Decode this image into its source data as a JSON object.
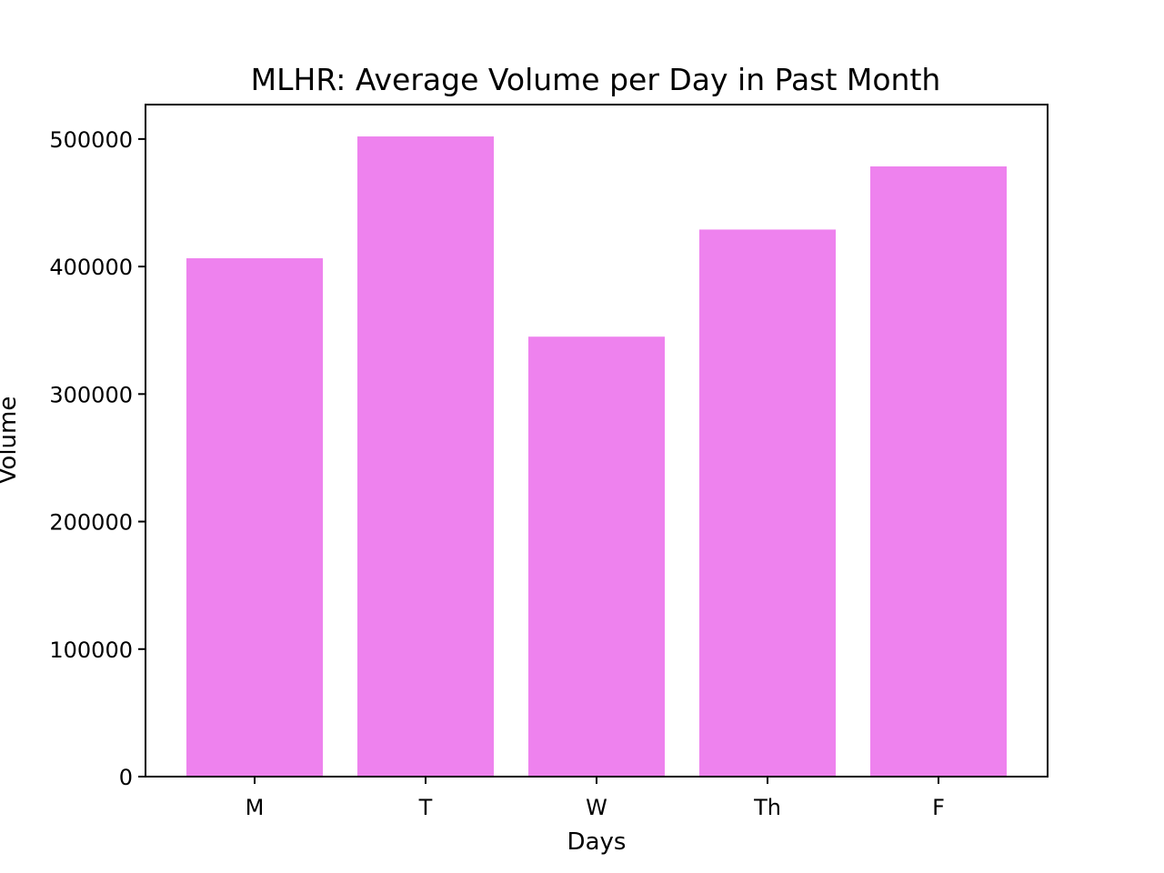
{
  "chart_data": {
    "type": "bar",
    "title": "MLHR: Average Volume per Day in Past Month",
    "xlabel": "Days",
    "ylabel": "Volume",
    "categories": [
      "M",
      "T",
      "W",
      "Th",
      "F"
    ],
    "values": [
      406500,
      502000,
      345000,
      429000,
      478500
    ],
    "ylim": [
      0,
      527000
    ],
    "yticks": [
      0,
      100000,
      200000,
      300000,
      400000,
      500000
    ],
    "ytick_labels": [
      "0",
      "100000",
      "200000",
      "300000",
      "400000",
      "500000"
    ],
    "bar_color": "#ee82ee",
    "grid": false,
    "legend": "none"
  }
}
